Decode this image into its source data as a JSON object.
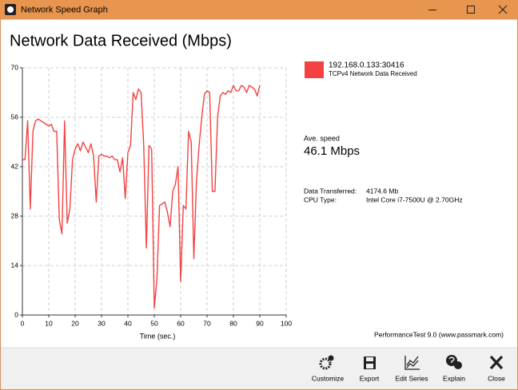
{
  "window": {
    "title": "Network Speed Graph"
  },
  "chart_data": {
    "type": "line",
    "title": "Network Data Received (Mbps)",
    "x_label": "Time (sec.)",
    "x": [
      0,
      1,
      2,
      3,
      4,
      5,
      6,
      7,
      8,
      9,
      10,
      11,
      12,
      13,
      14,
      15,
      16,
      17,
      18,
      19,
      20,
      21,
      22,
      23,
      24,
      25,
      26,
      27,
      28,
      29,
      30,
      31,
      32,
      33,
      34,
      35,
      36,
      37,
      38,
      39,
      40,
      41,
      42,
      43,
      44,
      45,
      46,
      47,
      48,
      49,
      50,
      51,
      52,
      53,
      54,
      55,
      56,
      57,
      58,
      59,
      60,
      61,
      62,
      63,
      64,
      65,
      66,
      67,
      68,
      69,
      70,
      71,
      72,
      73,
      74,
      75,
      76,
      77,
      78,
      79,
      80,
      81,
      82,
      83,
      84,
      85,
      86,
      87,
      88,
      89,
      90
    ],
    "series": [
      {
        "name": "192.168.0.133:30416",
        "description": "TCPv4 Network Data Received",
        "color": "#f44242",
        "values": [
          44,
          44,
          55,
          30,
          52,
          55,
          55.5,
          55,
          54.5,
          54,
          53.5,
          54,
          52,
          52,
          27,
          23,
          55,
          26,
          30,
          44,
          47,
          48.5,
          46.5,
          49,
          47.5,
          46,
          48.5,
          45,
          32,
          45,
          45.5,
          45,
          45,
          44.5,
          45,
          44,
          44,
          40.5,
          44.5,
          33,
          46,
          48,
          63,
          61,
          64,
          63,
          48,
          19,
          48,
          47,
          2,
          10,
          31,
          31.5,
          32,
          29,
          25,
          35,
          37,
          42,
          9.5,
          31,
          30,
          52,
          49,
          16,
          38,
          48,
          56,
          62.5,
          63.5,
          63,
          35,
          35,
          56,
          62,
          63,
          62.5,
          63.5,
          63,
          65,
          63.5,
          63.5,
          65,
          64.5,
          63,
          65,
          64.5,
          64,
          62,
          65
        ]
      }
    ],
    "xlim": [
      0,
      100
    ],
    "xticks": [
      0,
      10,
      20,
      30,
      40,
      50,
      60,
      70,
      80,
      90,
      100
    ],
    "ylim": [
      0,
      70
    ],
    "yticks": [
      0,
      14,
      28,
      42,
      56,
      70
    ],
    "grid": true
  },
  "stats": {
    "average_label": "Ave. speed",
    "average_value": "46.1 Mbps",
    "rows": [
      [
        "Data Transferred:",
        "4174.6 Mb"
      ],
      [
        "CPU Type:",
        "Intel Core i7-7500U @ 2.70GHz"
      ]
    ]
  },
  "footer": "PerformanceTest 9.0 (www.passmark.com)",
  "toolbar": [
    "Customize",
    "Export",
    "Edit Series",
    "Explain",
    "Close"
  ]
}
